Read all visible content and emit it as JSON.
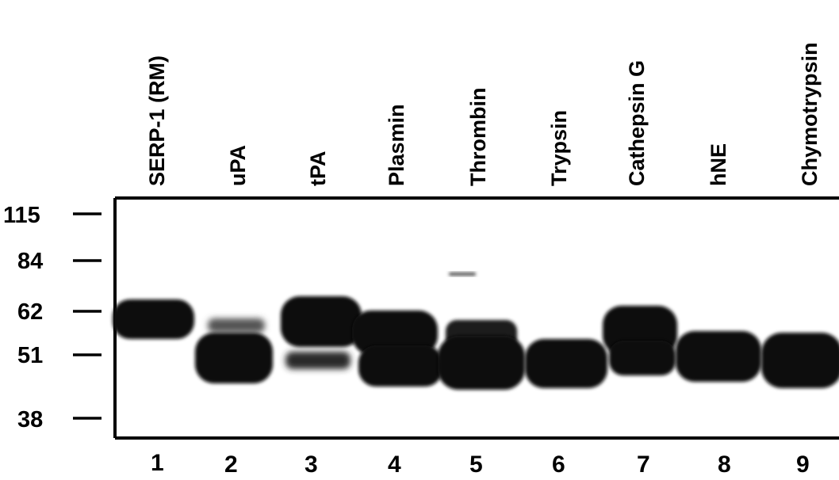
{
  "lanes": [
    {
      "label": "SERP-1 (RM)",
      "number": "1"
    },
    {
      "label": "uPA",
      "number": "2"
    },
    {
      "label": "tPA",
      "number": "3"
    },
    {
      "label": "Plasmin",
      "number": "4"
    },
    {
      "label": "Thrombin",
      "number": "5"
    },
    {
      "label": "Trypsin",
      "number": "6"
    },
    {
      "label": "Cathepsin G",
      "number": "7"
    },
    {
      "label": "hNE",
      "number": "8"
    },
    {
      "label": "Chymotrypsin",
      "number": "9"
    }
  ],
  "markers": [
    "115",
    "84",
    "62",
    "51",
    "38"
  ],
  "colors": {
    "ink": "#000000",
    "band": "#0d0d0d",
    "background": "#ffffff"
  }
}
